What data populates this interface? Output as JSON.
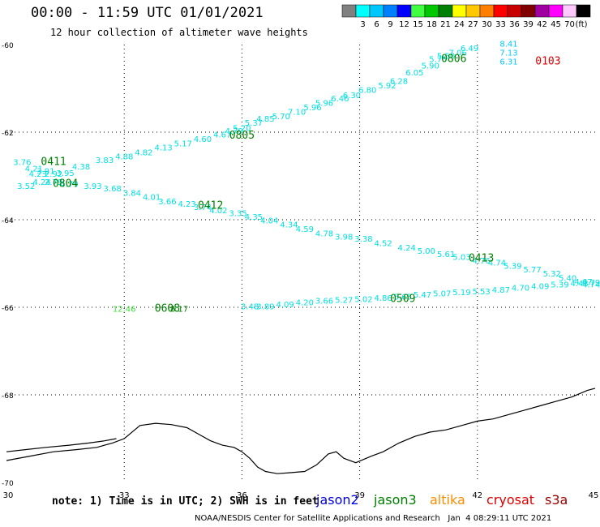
{
  "header": {
    "title": "00:00 - 11:59 UTC 01/01/2021",
    "subtitle": "12 hour collection of altimeter wave heights"
  },
  "colorbar": {
    "unit": "(ft)",
    "bins": [
      {
        "label": "",
        "color": "#808080"
      },
      {
        "label": "3",
        "color": "#00ffff"
      },
      {
        "label": "6",
        "color": "#00c8ff"
      },
      {
        "label": "9",
        "color": "#0080ff"
      },
      {
        "label": "12",
        "color": "#0000ff"
      },
      {
        "label": "15",
        "color": "#40ff40"
      },
      {
        "label": "18",
        "color": "#00c800"
      },
      {
        "label": "21",
        "color": "#008000"
      },
      {
        "label": "24",
        "color": "#ffff00"
      },
      {
        "label": "27",
        "color": "#ffc800"
      },
      {
        "label": "30",
        "color": "#ff8000"
      },
      {
        "label": "33",
        "color": "#ff0000"
      },
      {
        "label": "36",
        "color": "#c80000"
      },
      {
        "label": "39",
        "color": "#800000"
      },
      {
        "label": "42",
        "color": "#a000a0"
      },
      {
        "label": "45",
        "color": "#ff00ff"
      },
      {
        "label": "70",
        "color": "#ffc8ff"
      },
      {
        "label": "",
        "color": "#000000"
      }
    ]
  },
  "footer": {
    "note": "note: 1) Time is in UTC; 2) SWH is in feet",
    "credit": "NOAA/NESDIS Center for Satellite Applications and Research   Jan  4 08:29:11 UTC 2021",
    "satellites": [
      {
        "name": "jason2",
        "color": "#0000e0"
      },
      {
        "name": "jason3",
        "color": "#008000"
      },
      {
        "name": "altika",
        "color": "#ff8c00"
      },
      {
        "name": "cryosat",
        "color": "#e00000"
      },
      {
        "name": "s3a",
        "color": "#a00000"
      }
    ]
  },
  "chart_data": {
    "type": "scatter",
    "title": "00:00 - 11:59 UTC 01/01/2021",
    "subtitle": "12 hour collection of altimeter wave heights",
    "xlim": [
      30,
      45
    ],
    "ylim": [
      -70,
      -60
    ],
    "x_ticks": [
      30,
      33,
      36,
      39,
      42,
      45
    ],
    "y_ticks": [
      -60,
      -62,
      -64,
      -66,
      -68,
      -70
    ],
    "grid": true,
    "unit": "ft",
    "colors": {
      "cyan": "#00e0e0",
      "light_blue": "#00c8ff",
      "green": "#008000",
      "light_green": "#40e040",
      "red": "#e00000",
      "coast": "#000000"
    },
    "tracks": [
      {
        "color": "cyan",
        "points": [
          [
            30.4,
            -62.75,
            "3.76"
          ],
          [
            30.7,
            -62.9,
            "4.21"
          ],
          [
            31.0,
            -62.95,
            "3.91"
          ],
          [
            30.8,
            -63.02,
            "4.23"
          ],
          [
            31.2,
            -63.02,
            "2.92"
          ],
          [
            31.5,
            -63.0,
            "3.95"
          ],
          [
            31.9,
            -62.85,
            "4.38"
          ],
          [
            32.5,
            -62.7,
            "3.83"
          ],
          [
            33.0,
            -62.62,
            "4.88"
          ],
          [
            33.5,
            -62.53,
            "4.82"
          ],
          [
            34.0,
            -62.42,
            "4.13"
          ],
          [
            34.5,
            -62.32,
            "5.17"
          ],
          [
            35.0,
            -62.22,
            "4.60"
          ],
          [
            35.5,
            -62.12,
            "4.67"
          ],
          [
            35.8,
            -62.04,
            "4.79"
          ],
          [
            36.0,
            -61.97,
            "5.20"
          ],
          [
            36.3,
            -61.85,
            "5.37"
          ],
          [
            36.6,
            -61.76,
            "4.85"
          ],
          [
            37.0,
            -61.7,
            "5.70"
          ],
          [
            37.4,
            -61.6,
            "7.10"
          ],
          [
            37.8,
            -61.5,
            "5.96"
          ],
          [
            38.1,
            -61.4,
            "5.96"
          ],
          [
            38.5,
            -61.3,
            "6.46"
          ],
          [
            38.8,
            -61.22,
            "6.30"
          ],
          [
            39.2,
            -61.1,
            "6.80"
          ],
          [
            39.7,
            -61.0,
            "5.92"
          ],
          [
            40.0,
            -60.9,
            "6.28"
          ],
          [
            40.4,
            -60.7,
            "6.05"
          ],
          [
            40.8,
            -60.55,
            "5.90"
          ],
          [
            41.0,
            -60.4,
            "5.75"
          ],
          [
            41.2,
            -60.32,
            "5.50"
          ],
          [
            41.5,
            -60.25,
            "7.06"
          ],
          [
            41.8,
            -60.15,
            "6.49"
          ],
          [
            30.5,
            -63.3,
            "3.52"
          ],
          [
            30.9,
            -63.2,
            "4.24"
          ],
          [
            31.2,
            -63.2,
            "2.79"
          ],
          [
            31.6,
            -63.25,
            "4.79"
          ],
          [
            32.2,
            -63.3,
            "3.93"
          ],
          [
            32.7,
            -63.35,
            "3.68"
          ],
          [
            33.2,
            -63.45,
            "3.84"
          ],
          [
            33.7,
            -63.55,
            "4.01"
          ],
          [
            34.1,
            -63.65,
            "3.66"
          ],
          [
            34.6,
            -63.7,
            "4.23"
          ],
          [
            35.0,
            -63.78,
            "3.74"
          ],
          [
            35.4,
            -63.85,
            "4.02"
          ],
          [
            35.9,
            -63.92,
            "3.35"
          ],
          [
            36.3,
            -64.0,
            "4.35"
          ],
          [
            36.7,
            -64.08,
            "4.04"
          ],
          [
            37.2,
            -64.18,
            "4.34"
          ],
          [
            37.6,
            -64.28,
            "4.59"
          ],
          [
            38.1,
            -64.38,
            "4.78"
          ],
          [
            38.6,
            -64.45,
            "3.98"
          ],
          [
            39.1,
            -64.5,
            "3.38"
          ],
          [
            39.6,
            -64.6,
            "4.52"
          ],
          [
            40.2,
            -64.7,
            "4.24"
          ],
          [
            40.7,
            -64.78,
            "5.00"
          ],
          [
            41.2,
            -64.85,
            "5.61"
          ],
          [
            41.6,
            -64.92,
            "5.03"
          ],
          [
            42.1,
            -65.0,
            "4.76"
          ],
          [
            42.5,
            -65.05,
            "4.74"
          ],
          [
            42.9,
            -65.12,
            "5.39"
          ],
          [
            43.4,
            -65.2,
            "5.77"
          ],
          [
            43.9,
            -65.3,
            "5.32"
          ],
          [
            44.3,
            -65.4,
            "5.40"
          ],
          [
            44.7,
            -65.48,
            "4.67"
          ],
          [
            44.9,
            -65.55,
            "4.74"
          ],
          [
            36.2,
            -66.05,
            "3.48"
          ],
          [
            36.6,
            -66.05,
            "3.89"
          ],
          [
            37.1,
            -66.0,
            "4.09"
          ],
          [
            37.6,
            -65.95,
            "4.20"
          ],
          [
            38.1,
            -65.92,
            "3.66"
          ],
          [
            38.6,
            -65.9,
            "5.27"
          ],
          [
            39.1,
            -65.88,
            "5.02"
          ],
          [
            39.6,
            -65.85,
            "4.86"
          ],
          [
            40.1,
            -65.82,
            "5.65"
          ],
          [
            40.6,
            -65.78,
            "5.47"
          ],
          [
            41.1,
            -65.75,
            "5.07"
          ],
          [
            41.6,
            -65.72,
            "5.19"
          ],
          [
            42.1,
            -65.7,
            "5.53"
          ],
          [
            42.6,
            -65.67,
            "4.87"
          ],
          [
            43.1,
            -65.62,
            "4.70"
          ],
          [
            43.6,
            -65.58,
            "4.09"
          ],
          [
            44.1,
            -65.55,
            "5.39"
          ],
          [
            44.6,
            -65.52,
            "4.43"
          ],
          [
            44.9,
            -65.5,
            "4.79"
          ]
        ]
      },
      {
        "color": "light_blue",
        "points": [
          [
            42.8,
            -60.05,
            "8.41"
          ],
          [
            42.8,
            -60.25,
            "7.13"
          ],
          [
            42.8,
            -60.45,
            "6.31"
          ]
        ]
      },
      {
        "color": "light_green",
        "points": [
          [
            33.0,
            -66.1,
            "12.46"
          ]
        ]
      },
      {
        "color": "green",
        "points": [
          [
            34.4,
            -66.1,
            "8.17"
          ]
        ]
      }
    ],
    "pass_labels": [
      {
        "text": "0411",
        "x": 31.2,
        "y": -62.75,
        "color": "green"
      },
      {
        "text": "0804",
        "x": 31.5,
        "y": -63.25,
        "color": "green"
      },
      {
        "text": "0805",
        "x": 36.0,
        "y": -62.15,
        "color": "green"
      },
      {
        "text": "0806",
        "x": 41.4,
        "y": -60.4,
        "color": "green"
      },
      {
        "text": "0103",
        "x": 43.8,
        "y": -60.45,
        "color": "red"
      },
      {
        "text": "0412",
        "x": 35.2,
        "y": -63.75,
        "color": "green"
      },
      {
        "text": "0413",
        "x": 42.1,
        "y": -64.95,
        "color": "green"
      },
      {
        "text": "0509",
        "x": 40.1,
        "y": -65.88,
        "color": "green"
      },
      {
        "text": "0608",
        "x": 34.1,
        "y": -66.1,
        "color": "green"
      }
    ],
    "coastline": [
      [
        30,
        -69.5
      ],
      [
        30.6,
        -69.4
      ],
      [
        31.2,
        -69.3
      ],
      [
        31.8,
        -69.25
      ],
      [
        32.3,
        -69.2
      ],
      [
        32.7,
        -69.1
      ],
      [
        33.0,
        -69.0
      ],
      [
        33.2,
        -68.85
      ],
      [
        33.4,
        -68.7
      ],
      [
        33.8,
        -68.65
      ],
      [
        34.2,
        -68.68
      ],
      [
        34.6,
        -68.75
      ],
      [
        34.9,
        -68.9
      ],
      [
        35.2,
        -69.05
      ],
      [
        35.5,
        -69.15
      ],
      [
        35.8,
        -69.2
      ],
      [
        36.0,
        -69.3
      ],
      [
        36.2,
        -69.45
      ],
      [
        36.4,
        -69.65
      ],
      [
        36.6,
        -69.75
      ],
      [
        36.9,
        -69.8
      ],
      [
        37.2,
        -69.78
      ],
      [
        37.6,
        -69.75
      ],
      [
        37.9,
        -69.6
      ],
      [
        38.2,
        -69.35
      ],
      [
        38.4,
        -69.3
      ],
      [
        38.6,
        -69.45
      ],
      [
        38.9,
        -69.55
      ],
      [
        39.3,
        -69.4
      ],
      [
        39.6,
        -69.3
      ],
      [
        40.0,
        -69.1
      ],
      [
        40.4,
        -68.95
      ],
      [
        40.8,
        -68.85
      ],
      [
        41.2,
        -68.8
      ],
      [
        41.6,
        -68.7
      ],
      [
        42.0,
        -68.6
      ],
      [
        42.4,
        -68.55
      ],
      [
        42.8,
        -68.45
      ],
      [
        43.2,
        -68.35
      ],
      [
        43.6,
        -68.25
      ],
      [
        44.0,
        -68.15
      ],
      [
        44.4,
        -68.05
      ],
      [
        44.8,
        -67.9
      ],
      [
        45,
        -67.85
      ]
    ],
    "coastline_south": [
      [
        30,
        -69.3
      ],
      [
        30.5,
        -69.25
      ],
      [
        31.0,
        -69.2
      ],
      [
        31.6,
        -69.15
      ],
      [
        32.1,
        -69.1
      ],
      [
        32.5,
        -69.05
      ],
      [
        32.8,
        -69.0
      ]
    ]
  }
}
